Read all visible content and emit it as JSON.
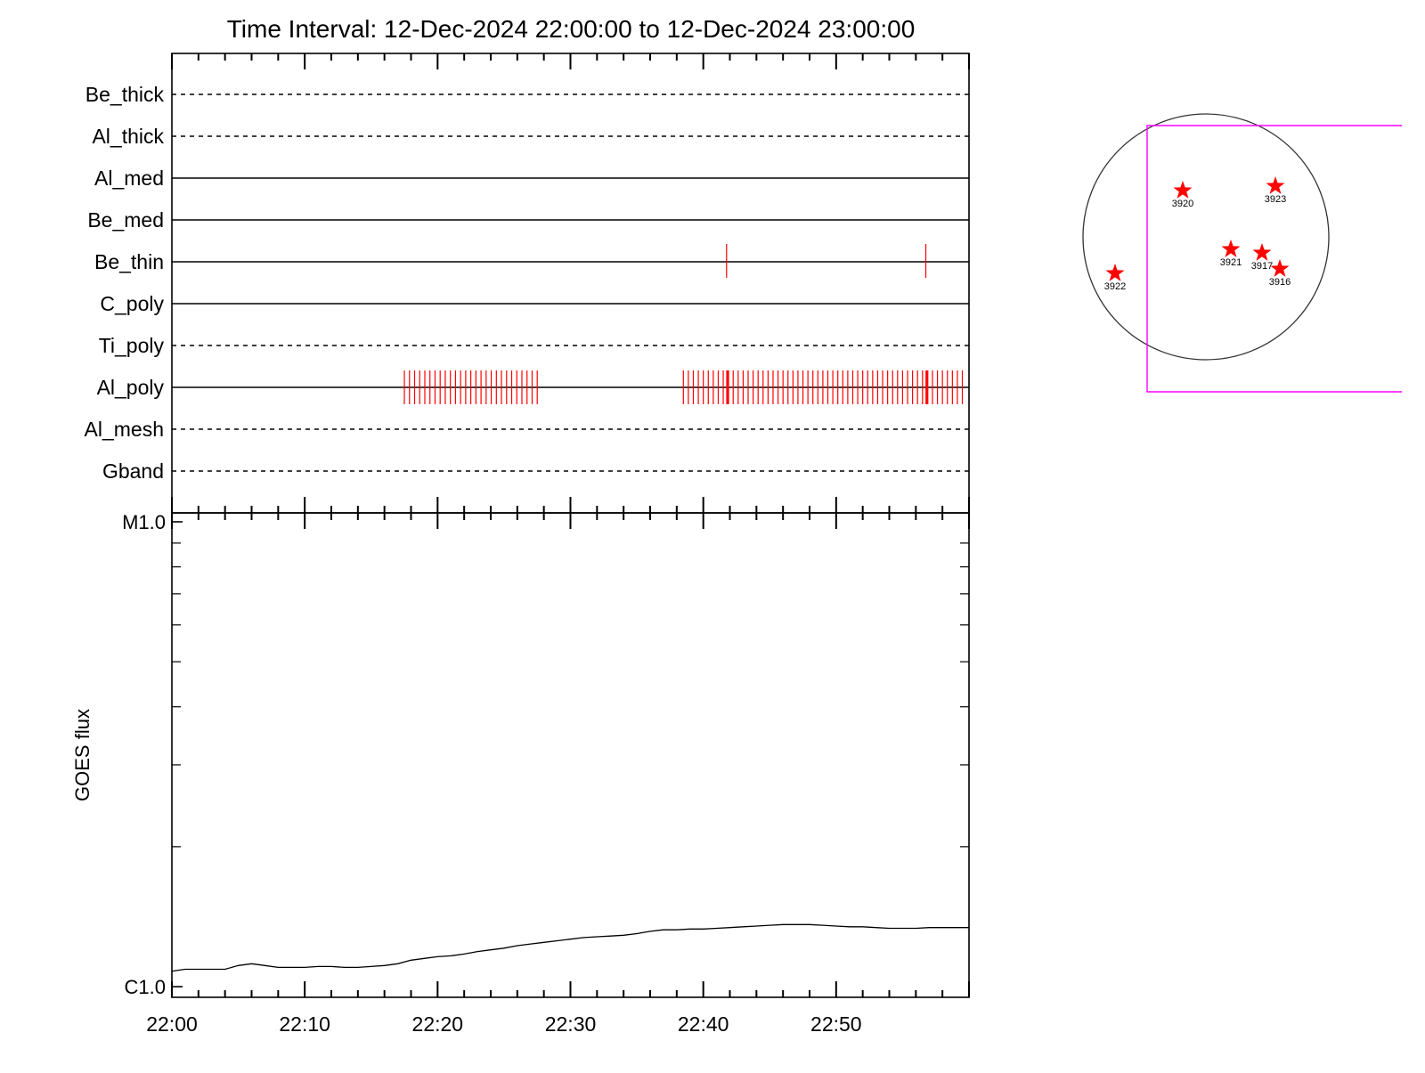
{
  "chart_data": [
    {
      "type": "event-timeline",
      "title": "Time Interval: 12-Dec-2024 22:00:00 to 12-Dec-2024 23:00:00",
      "x_ticks": [
        "22:00",
        "22:10",
        "22:20",
        "22:30",
        "22:40",
        "22:50"
      ],
      "rows": [
        {
          "name": "Be_thick",
          "style": "dashed",
          "events": []
        },
        {
          "name": "Al_thick",
          "style": "dashed",
          "events": []
        },
        {
          "name": "Al_med",
          "style": "solid",
          "events": []
        },
        {
          "name": "Be_med",
          "style": "solid",
          "events": []
        },
        {
          "name": "Be_thin",
          "style": "solid",
          "events": [
            "22:41:45",
            "22:56:45"
          ]
        },
        {
          "name": "C_poly",
          "style": "solid",
          "events": []
        },
        {
          "name": "Ti_poly",
          "style": "dashed",
          "events": []
        },
        {
          "name": "Al_poly",
          "style": "solid",
          "event_spans": [
            {
              "start": "22:17:30",
              "end": "22:27:30",
              "count": 27
            },
            {
              "start": "22:38:30",
              "end": "22:59:30",
              "count": 57
            }
          ],
          "emphasized_events": [
            "22:41:50",
            "22:56:50"
          ]
        },
        {
          "name": "Al_mesh",
          "style": "dashed",
          "events": []
        },
        {
          "name": "Gband",
          "style": "dashed",
          "events": []
        }
      ],
      "event_color": "#ff0000"
    },
    {
      "type": "line",
      "ylabel": "GOES flux",
      "y_scale": "log",
      "y_ticks": [
        "M1.0",
        "C1.0"
      ],
      "x_unit": "minutes after 22:00",
      "x_ticks": [
        "22:00",
        "22:10",
        "22:20",
        "22:30",
        "22:40",
        "22:50"
      ],
      "xlim": [
        0,
        60
      ],
      "series": [
        {
          "color": "#000000",
          "x": [
            0,
            1,
            2,
            3,
            4,
            5,
            6,
            7,
            8,
            9,
            10,
            11,
            12,
            13,
            14,
            15,
            16,
            17,
            18,
            19,
            20,
            21,
            22,
            23,
            24,
            25,
            26,
            27,
            28,
            29,
            30,
            31,
            32,
            33,
            34,
            35,
            36,
            37,
            38,
            39,
            40,
            41,
            42,
            43,
            44,
            45,
            46,
            47,
            48,
            49,
            50,
            51,
            52,
            53,
            54,
            55,
            56,
            57,
            58,
            59,
            60
          ],
          "y": [
            1.08e-06,
            1.09e-06,
            1.09e-06,
            1.09e-06,
            1.09e-06,
            1.11e-06,
            1.12e-06,
            1.11e-06,
            1.1e-06,
            1.1e-06,
            1.1e-06,
            1.105e-06,
            1.105e-06,
            1.1e-06,
            1.1e-06,
            1.105e-06,
            1.11e-06,
            1.12e-06,
            1.14e-06,
            1.15e-06,
            1.16e-06,
            1.165e-06,
            1.175e-06,
            1.19e-06,
            1.2e-06,
            1.21e-06,
            1.225e-06,
            1.235e-06,
            1.245e-06,
            1.255e-06,
            1.265e-06,
            1.275e-06,
            1.28e-06,
            1.285e-06,
            1.29e-06,
            1.3e-06,
            1.315e-06,
            1.325e-06,
            1.325e-06,
            1.33e-06,
            1.33e-06,
            1.335e-06,
            1.34e-06,
            1.345e-06,
            1.35e-06,
            1.355e-06,
            1.36e-06,
            1.36e-06,
            1.36e-06,
            1.355e-06,
            1.35e-06,
            1.345e-06,
            1.345e-06,
            1.34e-06,
            1.335e-06,
            1.335e-06,
            1.335e-06,
            1.34e-06,
            1.34e-06,
            1.34e-06,
            1.34e-06
          ]
        }
      ]
    },
    {
      "type": "solar-disk-map",
      "box_color": "#ff00ff",
      "regions": [
        {
          "label": "3920",
          "color": "#ff0000"
        },
        {
          "label": "3923",
          "color": "#ff0000"
        },
        {
          "label": "3921",
          "color": "#ff0000"
        },
        {
          "label": "3917",
          "color": "#ff0000"
        },
        {
          "label": "3916",
          "color": "#ff0000"
        },
        {
          "label": "3922",
          "color": "#ff0000"
        }
      ]
    }
  ]
}
